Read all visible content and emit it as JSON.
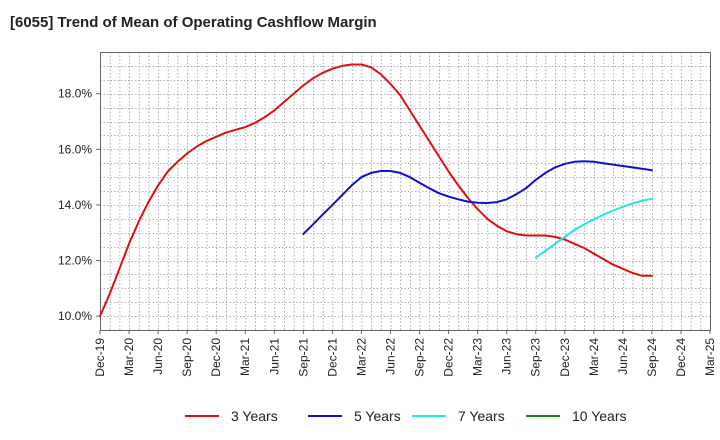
{
  "title": "[6055]  Trend of Mean of Operating Cashflow Margin",
  "chart_data": {
    "type": "line",
    "title": "[6055]  Trend of Mean of Operating Cashflow Margin",
    "xlabel": "",
    "ylabel": "",
    "grid": true,
    "legend_position": "bottom",
    "x_tick_labels": [
      "Dec-19",
      "Mar-20",
      "Jun-20",
      "Sep-20",
      "Dec-20",
      "Mar-21",
      "Jun-21",
      "Sep-21",
      "Dec-21",
      "Mar-22",
      "Jun-22",
      "Sep-22",
      "Dec-22",
      "Mar-23",
      "Jun-23",
      "Sep-23",
      "Dec-23",
      "Mar-24",
      "Jun-24",
      "Sep-24",
      "Dec-24",
      "Mar-25"
    ],
    "y_tick_labels": [
      "10.0%",
      "12.0%",
      "14.0%",
      "16.0%",
      "18.0%"
    ],
    "y_ticks": [
      10,
      12,
      14,
      16,
      18
    ],
    "ylim": [
      9.5,
      19.5
    ],
    "x_range": [
      "Dec-19",
      "Mar-25"
    ],
    "series": [
      {
        "name": "3 Years",
        "color": "#dd1111",
        "points": [
          [
            "Dec-19",
            10.0
          ],
          [
            "Jan-20",
            10.8
          ],
          [
            "Feb-20",
            11.7
          ],
          [
            "Mar-20",
            12.6
          ],
          [
            "Apr-20",
            13.4
          ],
          [
            "May-20",
            14.1
          ],
          [
            "Jun-20",
            14.7
          ],
          [
            "Jul-20",
            15.2
          ],
          [
            "Aug-20",
            15.55
          ],
          [
            "Sep-20",
            15.85
          ],
          [
            "Oct-20",
            16.1
          ],
          [
            "Nov-20",
            16.3
          ],
          [
            "Dec-20",
            16.45
          ],
          [
            "Jan-21",
            16.6
          ],
          [
            "Feb-21",
            16.7
          ],
          [
            "Mar-21",
            16.8
          ],
          [
            "Apr-21",
            16.95
          ],
          [
            "May-21",
            17.15
          ],
          [
            "Jun-21",
            17.4
          ],
          [
            "Jul-21",
            17.7
          ],
          [
            "Aug-21",
            18.0
          ],
          [
            "Sep-21",
            18.3
          ],
          [
            "Oct-21",
            18.55
          ],
          [
            "Nov-21",
            18.75
          ],
          [
            "Dec-21",
            18.9
          ],
          [
            "Jan-22",
            19.0
          ],
          [
            "Feb-22",
            19.05
          ],
          [
            "Mar-22",
            19.05
          ],
          [
            "Apr-22",
            18.95
          ],
          [
            "May-22",
            18.7
          ],
          [
            "Jun-22",
            18.35
          ],
          [
            "Jul-22",
            17.95
          ],
          [
            "Aug-22",
            17.4
          ],
          [
            "Sep-22",
            16.85
          ],
          [
            "Oct-22",
            16.3
          ],
          [
            "Nov-22",
            15.75
          ],
          [
            "Dec-22",
            15.2
          ],
          [
            "Jan-23",
            14.7
          ],
          [
            "Feb-23",
            14.25
          ],
          [
            "Mar-23",
            13.85
          ],
          [
            "Apr-23",
            13.5
          ],
          [
            "May-23",
            13.25
          ],
          [
            "Jun-23",
            13.05
          ],
          [
            "Jul-23",
            12.95
          ],
          [
            "Aug-23",
            12.9
          ],
          [
            "Sep-23",
            12.9
          ],
          [
            "Oct-23",
            12.9
          ],
          [
            "Nov-23",
            12.85
          ],
          [
            "Dec-23",
            12.75
          ],
          [
            "Jan-24",
            12.6
          ],
          [
            "Feb-24",
            12.45
          ],
          [
            "Mar-24",
            12.25
          ],
          [
            "Apr-24",
            12.05
          ],
          [
            "May-24",
            11.85
          ],
          [
            "Jun-24",
            11.7
          ],
          [
            "Jul-24",
            11.55
          ],
          [
            "Aug-24",
            11.45
          ],
          [
            "Sep-24",
            11.45
          ]
        ]
      },
      {
        "name": "5 Years",
        "color": "#1111cc",
        "points": [
          [
            "Sep-21",
            12.95
          ],
          [
            "Oct-21",
            13.3
          ],
          [
            "Nov-21",
            13.65
          ],
          [
            "Dec-21",
            14.0
          ],
          [
            "Jan-22",
            14.35
          ],
          [
            "Feb-22",
            14.7
          ],
          [
            "Mar-22",
            15.0
          ],
          [
            "Apr-22",
            15.15
          ],
          [
            "May-22",
            15.22
          ],
          [
            "Jun-22",
            15.22
          ],
          [
            "Jul-22",
            15.15
          ],
          [
            "Aug-22",
            15.0
          ],
          [
            "Sep-22",
            14.8
          ],
          [
            "Oct-22",
            14.6
          ],
          [
            "Nov-22",
            14.42
          ],
          [
            "Dec-22",
            14.3
          ],
          [
            "Jan-23",
            14.2
          ],
          [
            "Feb-23",
            14.12
          ],
          [
            "Mar-23",
            14.08
          ],
          [
            "Apr-23",
            14.07
          ],
          [
            "May-23",
            14.1
          ],
          [
            "Jun-23",
            14.2
          ],
          [
            "Jul-23",
            14.38
          ],
          [
            "Aug-23",
            14.6
          ],
          [
            "Sep-23",
            14.9
          ],
          [
            "Oct-23",
            15.15
          ],
          [
            "Nov-23",
            15.35
          ],
          [
            "Dec-23",
            15.48
          ],
          [
            "Jan-24",
            15.55
          ],
          [
            "Feb-24",
            15.57
          ],
          [
            "Mar-24",
            15.55
          ],
          [
            "Apr-24",
            15.5
          ],
          [
            "May-24",
            15.45
          ],
          [
            "Jun-24",
            15.4
          ],
          [
            "Jul-24",
            15.35
          ],
          [
            "Aug-24",
            15.3
          ],
          [
            "Sep-24",
            15.25
          ]
        ]
      },
      {
        "name": "7 Years",
        "color": "#22e5e5",
        "points": [
          [
            "Sep-23",
            12.1
          ],
          [
            "Oct-23",
            12.35
          ],
          [
            "Nov-23",
            12.6
          ],
          [
            "Dec-23",
            12.85
          ],
          [
            "Jan-24",
            13.1
          ],
          [
            "Feb-24",
            13.3
          ],
          [
            "Mar-24",
            13.48
          ],
          [
            "Apr-24",
            13.65
          ],
          [
            "May-24",
            13.8
          ],
          [
            "Jun-24",
            13.93
          ],
          [
            "Jul-24",
            14.05
          ],
          [
            "Aug-24",
            14.15
          ],
          [
            "Sep-24",
            14.22
          ]
        ]
      },
      {
        "name": "10 Years",
        "color": "#118811",
        "points": []
      }
    ]
  }
}
